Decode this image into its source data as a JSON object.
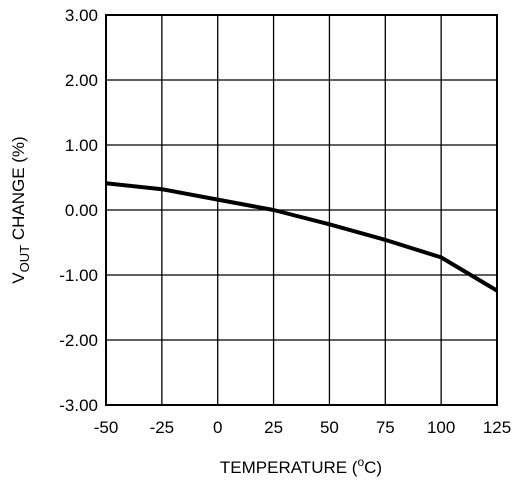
{
  "chart_data": {
    "type": "line",
    "title": "",
    "xlabel": "TEMPERATURE (",
    "xlabel_unit_sup": "o",
    "xlabel_unit_tail": "C)",
    "ylabel_main": "V",
    "ylabel_sub": "OUT",
    "ylabel_tail": " CHANGE (%)",
    "xlim": [
      -50,
      125
    ],
    "ylim": [
      -3,
      3
    ],
    "x_ticks": [
      -50,
      -25,
      0,
      25,
      50,
      75,
      100,
      125
    ],
    "x_tick_labels": [
      "-50",
      "-25",
      "0",
      "25",
      "50",
      "75",
      "100",
      "125"
    ],
    "y_ticks": [
      3,
      2,
      1,
      0,
      -1,
      -2,
      -3
    ],
    "y_tick_labels": [
      "3.00",
      "2.00",
      "1.00",
      "0.00",
      "-1.00",
      "-2.00",
      "-3.00"
    ],
    "grid": true,
    "series": [
      {
        "x": [
          -50,
          -25,
          0,
          25,
          50,
          75,
          100,
          125
        ],
        "values": [
          0.41,
          0.32,
          0.16,
          0.0,
          -0.22,
          -0.46,
          -0.73,
          -1.24
        ]
      }
    ],
    "line_color": "#000000"
  }
}
